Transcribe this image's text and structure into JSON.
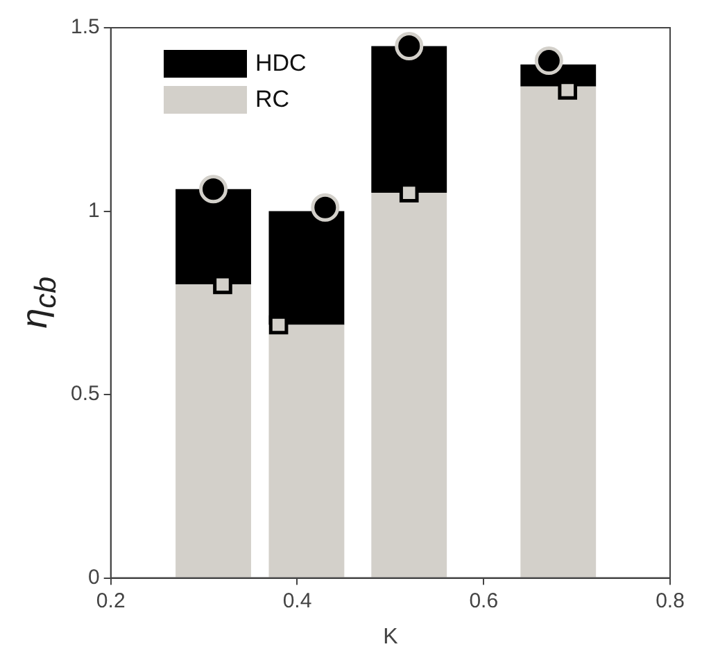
{
  "chart_data": {
    "type": "bar",
    "xlabel": "K",
    "ylabel": "η$_{cb}$",
    "stacked": true,
    "x": [
      0.31,
      0.41,
      0.52,
      0.68
    ],
    "series": [
      {
        "name": "RC",
        "color": "#d3d0ca",
        "values": [
          0.8,
          0.69,
          1.05,
          1.34
        ]
      },
      {
        "name": "HDC",
        "color": "#000000",
        "values": [
          0.26,
          0.31,
          0.4,
          0.06
        ]
      },
      {
        "type": "scatter",
        "marker": "circle",
        "color": "#000000",
        "x": [
          0.31,
          0.43,
          0.52,
          0.67
        ],
        "values": [
          1.06,
          1.01,
          1.45,
          1.41
        ]
      },
      {
        "type": "scatter",
        "marker": "square",
        "color": "#d3d0ca",
        "x": [
          0.32,
          0.38,
          0.52,
          0.69
        ],
        "values": [
          0.8,
          0.69,
          1.05,
          1.33
        ]
      }
    ],
    "xlim": [
      0.2,
      0.8
    ],
    "xticks": [
      0.2,
      0.4,
      0.6,
      0.8
    ],
    "ylim": [
      0,
      1.5
    ],
    "yticks": [
      0,
      0.5,
      1,
      1.5
    ],
    "grid": false,
    "legend": "top left"
  }
}
